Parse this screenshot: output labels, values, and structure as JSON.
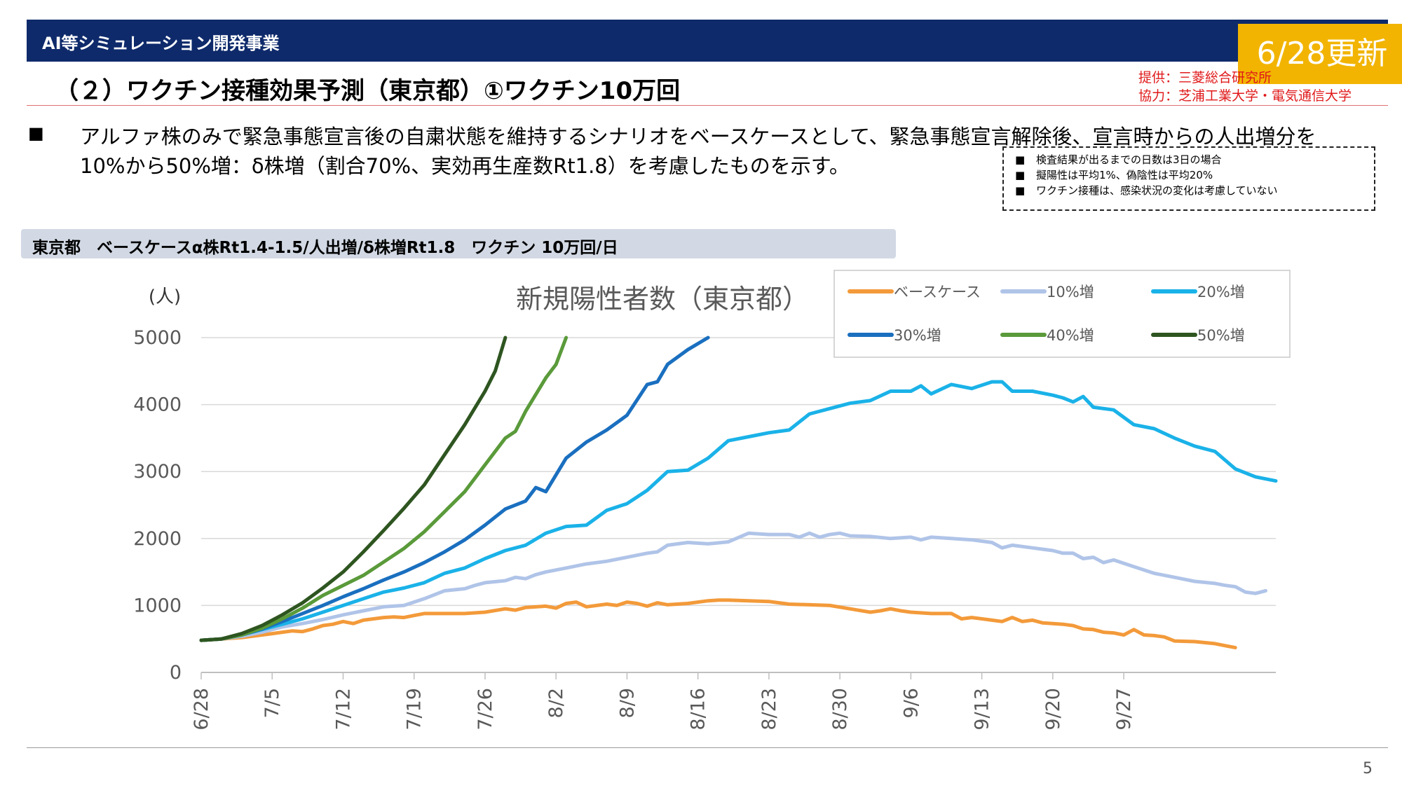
{
  "header": {
    "title": "AI等シミュレーション開発事業",
    "update_badge": "6/28更新"
  },
  "page": {
    "title": "（２）ワクチン接種効果予測（東京都）①ワクチン10万回",
    "credit_provider": "提供：三菱総合研究所",
    "credit_cooperation": "協力：芝浦工業大学・電気通信大学",
    "bullet": "■",
    "body_line1": "アルファ株のみで緊急事態宣言後の自粛状態を維持するシナリオをベースケースとして、緊急事態宣言解除後、宣言時からの人出増分を",
    "body_line2": "10%から50%増：δ株増（割合70%、実効再生産数Rt1.8）を考慮したものを示す。",
    "notes": [
      "検査結果が出るまでの日数は3日の場合",
      "擬陽性は平均1%、偽陰性は平均20%",
      "ワクチン接種は、感染状況の変化は考慮していない"
    ],
    "note_marker": "■",
    "subtitle": "東京都　ベースケースα株Rt1.4-1.5/人出増/δ株増Rt1.8　ワクチン 10万回/日",
    "page_number": "5"
  },
  "chart_data": {
    "type": "line",
    "title": "新規陽性者数（東京都）",
    "ylabel": "(人)",
    "xlabel": "",
    "ylim": [
      0,
      5000
    ],
    "yticks": [
      "0",
      "1000",
      "2000",
      "3000",
      "4000",
      "5000"
    ],
    "grid": true,
    "legend_position": "top-right",
    "x_tick_labels": [
      "6/28",
      "7/5",
      "7/12",
      "7/19",
      "7/26",
      "8/2",
      "8/9",
      "8/16",
      "8/23",
      "8/30",
      "9/6",
      "9/13",
      "9/20",
      "9/27"
    ],
    "x_range_days": [
      0,
      95
    ],
    "series": [
      {
        "name": "ベースケース",
        "color": "#f39a3a",
        "points": [
          [
            0,
            480
          ],
          [
            2,
            500
          ],
          [
            4,
            520
          ],
          [
            6,
            560
          ],
          [
            7,
            580
          ],
          [
            8,
            600
          ],
          [
            9,
            620
          ],
          [
            10,
            610
          ],
          [
            11,
            650
          ],
          [
            12,
            700
          ],
          [
            13,
            720
          ],
          [
            14,
            760
          ],
          [
            15,
            730
          ],
          [
            16,
            780
          ],
          [
            17,
            800
          ],
          [
            18,
            820
          ],
          [
            19,
            830
          ],
          [
            20,
            820
          ],
          [
            21,
            850
          ],
          [
            22,
            880
          ],
          [
            24,
            880
          ],
          [
            26,
            880
          ],
          [
            28,
            900
          ],
          [
            30,
            950
          ],
          [
            31,
            930
          ],
          [
            32,
            970
          ],
          [
            34,
            990
          ],
          [
            35,
            960
          ],
          [
            36,
            1030
          ],
          [
            37,
            1050
          ],
          [
            38,
            980
          ],
          [
            40,
            1020
          ],
          [
            41,
            1000
          ],
          [
            42,
            1050
          ],
          [
            43,
            1030
          ],
          [
            44,
            990
          ],
          [
            45,
            1040
          ],
          [
            46,
            1010
          ],
          [
            48,
            1030
          ],
          [
            50,
            1070
          ],
          [
            51,
            1080
          ],
          [
            52,
            1080
          ],
          [
            54,
            1070
          ],
          [
            56,
            1060
          ],
          [
            57,
            1040
          ],
          [
            58,
            1020
          ],
          [
            60,
            1010
          ],
          [
            62,
            1000
          ],
          [
            64,
            950
          ],
          [
            66,
            900
          ],
          [
            67,
            920
          ],
          [
            68,
            950
          ],
          [
            69,
            920
          ],
          [
            70,
            900
          ],
          [
            72,
            880
          ],
          [
            74,
            880
          ],
          [
            75,
            800
          ],
          [
            76,
            820
          ],
          [
            78,
            780
          ],
          [
            79,
            760
          ],
          [
            80,
            820
          ],
          [
            81,
            760
          ],
          [
            82,
            780
          ],
          [
            83,
            740
          ],
          [
            85,
            720
          ],
          [
            86,
            700
          ],
          [
            87,
            650
          ],
          [
            88,
            640
          ],
          [
            89,
            600
          ],
          [
            90,
            590
          ],
          [
            91,
            560
          ],
          [
            92,
            640
          ],
          [
            93,
            560
          ],
          [
            94,
            550
          ],
          [
            95,
            530
          ],
          [
            96,
            470
          ],
          [
            98,
            460
          ],
          [
            100,
            430
          ],
          [
            101,
            400
          ],
          [
            102,
            370
          ]
        ]
      },
      {
        "name": "10%増",
        "color": "#b0c4e8",
        "points": [
          [
            0,
            480
          ],
          [
            2,
            500
          ],
          [
            4,
            540
          ],
          [
            6,
            600
          ],
          [
            8,
            680
          ],
          [
            10,
            730
          ],
          [
            12,
            790
          ],
          [
            14,
            860
          ],
          [
            16,
            920
          ],
          [
            18,
            980
          ],
          [
            20,
            1000
          ],
          [
            22,
            1100
          ],
          [
            24,
            1220
          ],
          [
            26,
            1250
          ],
          [
            27,
            1300
          ],
          [
            28,
            1340
          ],
          [
            30,
            1370
          ],
          [
            31,
            1420
          ],
          [
            32,
            1400
          ],
          [
            33,
            1460
          ],
          [
            34,
            1500
          ],
          [
            36,
            1560
          ],
          [
            38,
            1620
          ],
          [
            40,
            1660
          ],
          [
            42,
            1720
          ],
          [
            44,
            1780
          ],
          [
            45,
            1800
          ],
          [
            46,
            1900
          ],
          [
            48,
            1940
          ],
          [
            50,
            1920
          ],
          [
            52,
            1950
          ],
          [
            54,
            2080
          ],
          [
            56,
            2060
          ],
          [
            58,
            2060
          ],
          [
            59,
            2020
          ],
          [
            60,
            2080
          ],
          [
            61,
            2020
          ],
          [
            62,
            2060
          ],
          [
            63,
            2080
          ],
          [
            64,
            2040
          ],
          [
            66,
            2030
          ],
          [
            68,
            2000
          ],
          [
            70,
            2020
          ],
          [
            71,
            1980
          ],
          [
            72,
            2020
          ],
          [
            74,
            2000
          ],
          [
            76,
            1980
          ],
          [
            78,
            1940
          ],
          [
            79,
            1860
          ],
          [
            80,
            1900
          ],
          [
            82,
            1860
          ],
          [
            83,
            1840
          ],
          [
            84,
            1820
          ],
          [
            85,
            1780
          ],
          [
            86,
            1780
          ],
          [
            87,
            1700
          ],
          [
            88,
            1720
          ],
          [
            89,
            1640
          ],
          [
            90,
            1680
          ],
          [
            92,
            1580
          ],
          [
            94,
            1480
          ],
          [
            96,
            1420
          ],
          [
            98,
            1360
          ],
          [
            100,
            1330
          ],
          [
            101,
            1300
          ],
          [
            102,
            1280
          ],
          [
            103,
            1200
          ],
          [
            104,
            1180
          ],
          [
            105,
            1220
          ]
        ]
      },
      {
        "name": "20%増",
        "color": "#1ab2e8",
        "points": [
          [
            0,
            480
          ],
          [
            2,
            500
          ],
          [
            4,
            560
          ],
          [
            6,
            640
          ],
          [
            8,
            720
          ],
          [
            10,
            800
          ],
          [
            12,
            900
          ],
          [
            14,
            1000
          ],
          [
            16,
            1100
          ],
          [
            18,
            1200
          ],
          [
            20,
            1260
          ],
          [
            22,
            1340
          ],
          [
            24,
            1480
          ],
          [
            26,
            1560
          ],
          [
            28,
            1700
          ],
          [
            30,
            1820
          ],
          [
            32,
            1900
          ],
          [
            34,
            2080
          ],
          [
            36,
            2180
          ],
          [
            38,
            2200
          ],
          [
            40,
            2420
          ],
          [
            42,
            2520
          ],
          [
            44,
            2720
          ],
          [
            46,
            3000
          ],
          [
            48,
            3020
          ],
          [
            50,
            3200
          ],
          [
            52,
            3460
          ],
          [
            54,
            3520
          ],
          [
            56,
            3580
          ],
          [
            58,
            3620
          ],
          [
            60,
            3860
          ],
          [
            62,
            3940
          ],
          [
            64,
            4020
          ],
          [
            66,
            4060
          ],
          [
            68,
            4200
          ],
          [
            70,
            4200
          ],
          [
            71,
            4280
          ],
          [
            72,
            4160
          ],
          [
            74,
            4300
          ],
          [
            76,
            4240
          ],
          [
            78,
            4340
          ],
          [
            79,
            4340
          ],
          [
            80,
            4200
          ],
          [
            82,
            4200
          ],
          [
            84,
            4140
          ],
          [
            85,
            4100
          ],
          [
            86,
            4040
          ],
          [
            87,
            4120
          ],
          [
            88,
            3960
          ],
          [
            90,
            3920
          ],
          [
            92,
            3700
          ],
          [
            94,
            3640
          ],
          [
            96,
            3500
          ],
          [
            98,
            3380
          ],
          [
            100,
            3300
          ],
          [
            102,
            3040
          ],
          [
            104,
            2920
          ],
          [
            106,
            2860
          ]
        ]
      },
      {
        "name": "30%増",
        "color": "#1a6fbf",
        "points": [
          [
            0,
            480
          ],
          [
            2,
            500
          ],
          [
            4,
            560
          ],
          [
            6,
            650
          ],
          [
            8,
            760
          ],
          [
            10,
            880
          ],
          [
            12,
            1000
          ],
          [
            14,
            1130
          ],
          [
            16,
            1250
          ],
          [
            18,
            1380
          ],
          [
            20,
            1500
          ],
          [
            22,
            1640
          ],
          [
            24,
            1800
          ],
          [
            26,
            1980
          ],
          [
            28,
            2200
          ],
          [
            30,
            2440
          ],
          [
            32,
            2560
          ],
          [
            33,
            2760
          ],
          [
            34,
            2700
          ],
          [
            36,
            3200
          ],
          [
            38,
            3440
          ],
          [
            40,
            3620
          ],
          [
            42,
            3840
          ],
          [
            44,
            4300
          ],
          [
            45,
            4340
          ],
          [
            46,
            4600
          ],
          [
            48,
            4820
          ],
          [
            50,
            5000
          ]
        ]
      },
      {
        "name": "40%増",
        "color": "#5a9a3a",
        "points": [
          [
            0,
            480
          ],
          [
            2,
            500
          ],
          [
            4,
            560
          ],
          [
            6,
            660
          ],
          [
            8,
            800
          ],
          [
            10,
            960
          ],
          [
            12,
            1150
          ],
          [
            14,
            1300
          ],
          [
            16,
            1450
          ],
          [
            18,
            1650
          ],
          [
            20,
            1850
          ],
          [
            22,
            2100
          ],
          [
            24,
            2400
          ],
          [
            26,
            2700
          ],
          [
            28,
            3100
          ],
          [
            30,
            3500
          ],
          [
            31,
            3600
          ],
          [
            32,
            3900
          ],
          [
            34,
            4400
          ],
          [
            35,
            4600
          ],
          [
            36,
            5000
          ]
        ]
      },
      {
        "name": "50%増",
        "color": "#2e5520",
        "points": [
          [
            0,
            480
          ],
          [
            2,
            500
          ],
          [
            4,
            580
          ],
          [
            6,
            700
          ],
          [
            8,
            860
          ],
          [
            10,
            1040
          ],
          [
            12,
            1260
          ],
          [
            14,
            1500
          ],
          [
            16,
            1800
          ],
          [
            18,
            2120
          ],
          [
            20,
            2450
          ],
          [
            22,
            2800
          ],
          [
            24,
            3250
          ],
          [
            26,
            3700
          ],
          [
            28,
            4200
          ],
          [
            29,
            4500
          ],
          [
            30,
            5000
          ]
        ]
      }
    ]
  }
}
